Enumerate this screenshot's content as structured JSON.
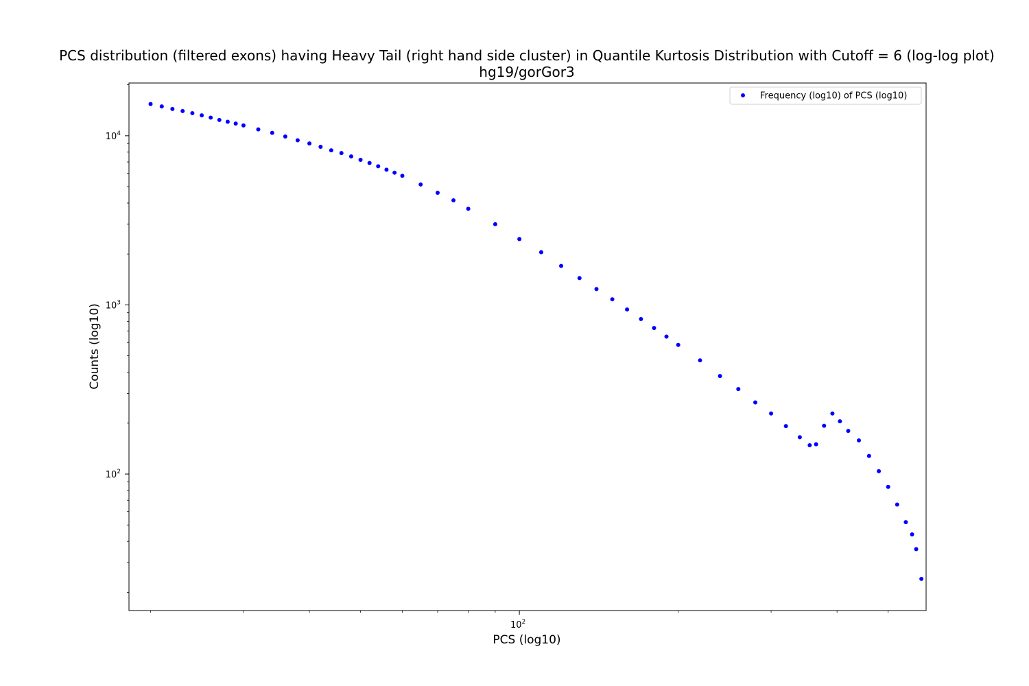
{
  "chart_data": {
    "type": "scatter",
    "title": "PCS distribution (filtered exons) having Heavy Tail (right hand side cluster) in Quantile Kurtosis Distribution with Cutoff = 6 (log-log plot)",
    "subtitle": "hg19/gorGor3",
    "xlabel": "PCS (log10)",
    "ylabel": "Counts (log10)",
    "xscale": "log",
    "yscale": "log",
    "xlim": [
      18.2,
      590
    ],
    "ylim": [
      15.6,
      20500
    ],
    "grid": false,
    "legend": "top-right",
    "x_tick_labels": [
      {
        "base": "10",
        "exp": "2",
        "value": 100
      }
    ],
    "y_tick_labels": [
      {
        "base": "10",
        "exp": "2",
        "value": 100
      },
      {
        "base": "10",
        "exp": "3",
        "value": 1000
      },
      {
        "base": "10",
        "exp": "4",
        "value": 10000
      }
    ],
    "x_minor_ticks": [
      20,
      30,
      40,
      50,
      60,
      70,
      80,
      90,
      200,
      300,
      400,
      500
    ],
    "series": [
      {
        "name": "Frequency (log10) of PCS (log10)",
        "color": "#0000ff",
        "x_range": [
          20,
          578
        ],
        "points": [
          [
            20,
            15400
          ],
          [
            21,
            14900
          ],
          [
            22,
            14400
          ],
          [
            23,
            14000
          ],
          [
            24,
            13600
          ],
          [
            25,
            13200
          ],
          [
            26,
            12800
          ],
          [
            27,
            12400
          ],
          [
            28,
            12100
          ],
          [
            29,
            11800
          ],
          [
            30,
            11500
          ],
          [
            32,
            10900
          ],
          [
            34,
            10400
          ],
          [
            36,
            9900
          ],
          [
            38,
            9400
          ],
          [
            40,
            9000
          ],
          [
            42,
            8600
          ],
          [
            44,
            8200
          ],
          [
            46,
            7900
          ],
          [
            48,
            7550
          ],
          [
            50,
            7200
          ],
          [
            52,
            6900
          ],
          [
            54,
            6600
          ],
          [
            56,
            6300
          ],
          [
            58,
            6050
          ],
          [
            60,
            5800
          ],
          [
            65,
            5150
          ],
          [
            70,
            4600
          ],
          [
            75,
            4150
          ],
          [
            80,
            3700
          ],
          [
            90,
            3000
          ],
          [
            100,
            2450
          ],
          [
            110,
            2050
          ],
          [
            120,
            1700
          ],
          [
            130,
            1440
          ],
          [
            140,
            1240
          ],
          [
            150,
            1080
          ],
          [
            160,
            940
          ],
          [
            170,
            825
          ],
          [
            180,
            730
          ],
          [
            190,
            650
          ],
          [
            200,
            580
          ],
          [
            220,
            470
          ],
          [
            240,
            380
          ],
          [
            260,
            318
          ],
          [
            280,
            265
          ],
          [
            300,
            228
          ],
          [
            320,
            192
          ],
          [
            340,
            165
          ],
          [
            355,
            148
          ],
          [
            365,
            150
          ],
          [
            378,
            193
          ],
          [
            392,
            228
          ],
          [
            405,
            205
          ],
          [
            420,
            180
          ],
          [
            440,
            158
          ],
          [
            460,
            128
          ],
          [
            480,
            104
          ],
          [
            500,
            84
          ],
          [
            520,
            66
          ],
          [
            540,
            52
          ],
          [
            555,
            44
          ],
          [
            565,
            36
          ],
          [
            578,
            24
          ]
        ]
      }
    ]
  }
}
